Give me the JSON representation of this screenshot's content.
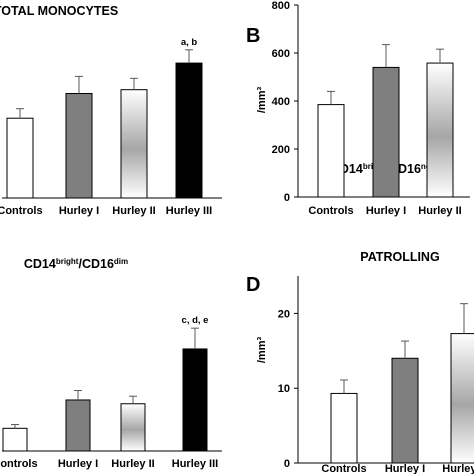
{
  "chart_data": [
    {
      "type": "bar",
      "panel_label": "",
      "title": "TOTAL MONOCYTES",
      "categories": [
        "Controls",
        "Hurley I",
        "Hurley II",
        "Hurley III"
      ],
      "values": [
        0.42,
        0.55,
        0.57,
        0.71
      ],
      "errors": [
        0.05,
        0.09,
        0.06,
        0.07
      ],
      "annotations": [
        "",
        "",
        "",
        "a, b"
      ],
      "ylabel": "",
      "yticks": [],
      "ylim": [
        0,
        1
      ]
    },
    {
      "type": "bar",
      "panel_label": "B",
      "title": "CD14",
      "title_sup1": "bright",
      "title_mid": "/CD16",
      "title_sup2": "neg",
      "categories": [
        "Controls",
        "Hurley I",
        "Hurley II"
      ],
      "values": [
        385,
        540,
        558
      ],
      "errors": [
        55,
        95,
        58
      ],
      "annotations": [
        "",
        "",
        ""
      ],
      "ylabel": "/mm³",
      "yticks": [
        "0",
        "200",
        "400",
        "600",
        "800"
      ],
      "ylim": [
        0,
        800
      ]
    },
    {
      "type": "bar",
      "panel_label": "",
      "title": "CD14",
      "title_sup1": "bright",
      "title_mid": "/CD16",
      "title_sup2": "dim",
      "categories": [
        "Controls",
        "Hurley I",
        "Hurley II",
        "Hurley III"
      ],
      "values": [
        0.12,
        0.27,
        0.25,
        0.54
      ],
      "errors": [
        0.02,
        0.05,
        0.04,
        0.11
      ],
      "annotations": [
        "",
        "",
        "",
        "c, d, e"
      ],
      "ylabel": "",
      "yticks": [],
      "ylim": [
        0,
        1
      ]
    },
    {
      "type": "bar",
      "panel_label": "D",
      "title": "PATROLLING",
      "categories": [
        "Controls",
        "Hurley I",
        "Hurley II"
      ],
      "values": [
        9.3,
        14.0,
        17.3
      ],
      "errors": [
        1.8,
        2.3,
        4.0
      ],
      "annotations": [
        "",
        "",
        ""
      ],
      "ylabel": "/mm³",
      "yticks": [
        "0",
        "10",
        "20"
      ],
      "ylim": [
        0,
        25
      ]
    }
  ],
  "colors": {
    "controls": "#ffffff",
    "hurley1": "#7f7f7f",
    "hurley2_edge": "#ffffff",
    "hurley2_center": "#a6a6a6",
    "hurley3": "#000000",
    "axis": "#000000",
    "errorbar": "#595959"
  }
}
